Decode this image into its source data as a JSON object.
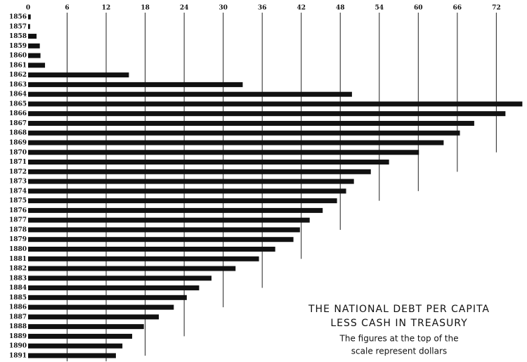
{
  "chart_data": {
    "type": "bar",
    "orientation": "horizontal",
    "title": [
      "THE NATIONAL DEBT PER CAPITA",
      "LESS CASH IN TREASURY"
    ],
    "subtitle": [
      "The figures at the top of the",
      "scale represent dollars"
    ],
    "categories": [
      "1856",
      "1857",
      "1858",
      "1859",
      "1860",
      "1861",
      "1862",
      "1863",
      "1864",
      "1865",
      "1866",
      "1867",
      "1868",
      "1869",
      "1870",
      "1871",
      "1872",
      "1873",
      "1874",
      "1875",
      "1876",
      "1877",
      "1878",
      "1879",
      "1880",
      "1881",
      "1882",
      "1883",
      "1884",
      "1885",
      "1886",
      "1887",
      "1888",
      "1889",
      "1890",
      "1891"
    ],
    "values": [
      0.4,
      0.3,
      1.3,
      1.8,
      1.9,
      2.6,
      15.5,
      33.0,
      49.8,
      76.0,
      73.4,
      68.6,
      66.4,
      63.9,
      60.1,
      55.5,
      52.7,
      50.1,
      48.9,
      47.5,
      45.3,
      43.3,
      41.8,
      40.8,
      38.0,
      35.5,
      31.9,
      28.2,
      26.3,
      24.4,
      22.4,
      20.1,
      17.8,
      16.0,
      14.5,
      13.5
    ],
    "color": "#111111",
    "xlim": [
      0,
      76.5
    ],
    "xticks": [
      0,
      6,
      12,
      18,
      24,
      30,
      36,
      42,
      48,
      54,
      60,
      66,
      72
    ],
    "grid": true
  }
}
